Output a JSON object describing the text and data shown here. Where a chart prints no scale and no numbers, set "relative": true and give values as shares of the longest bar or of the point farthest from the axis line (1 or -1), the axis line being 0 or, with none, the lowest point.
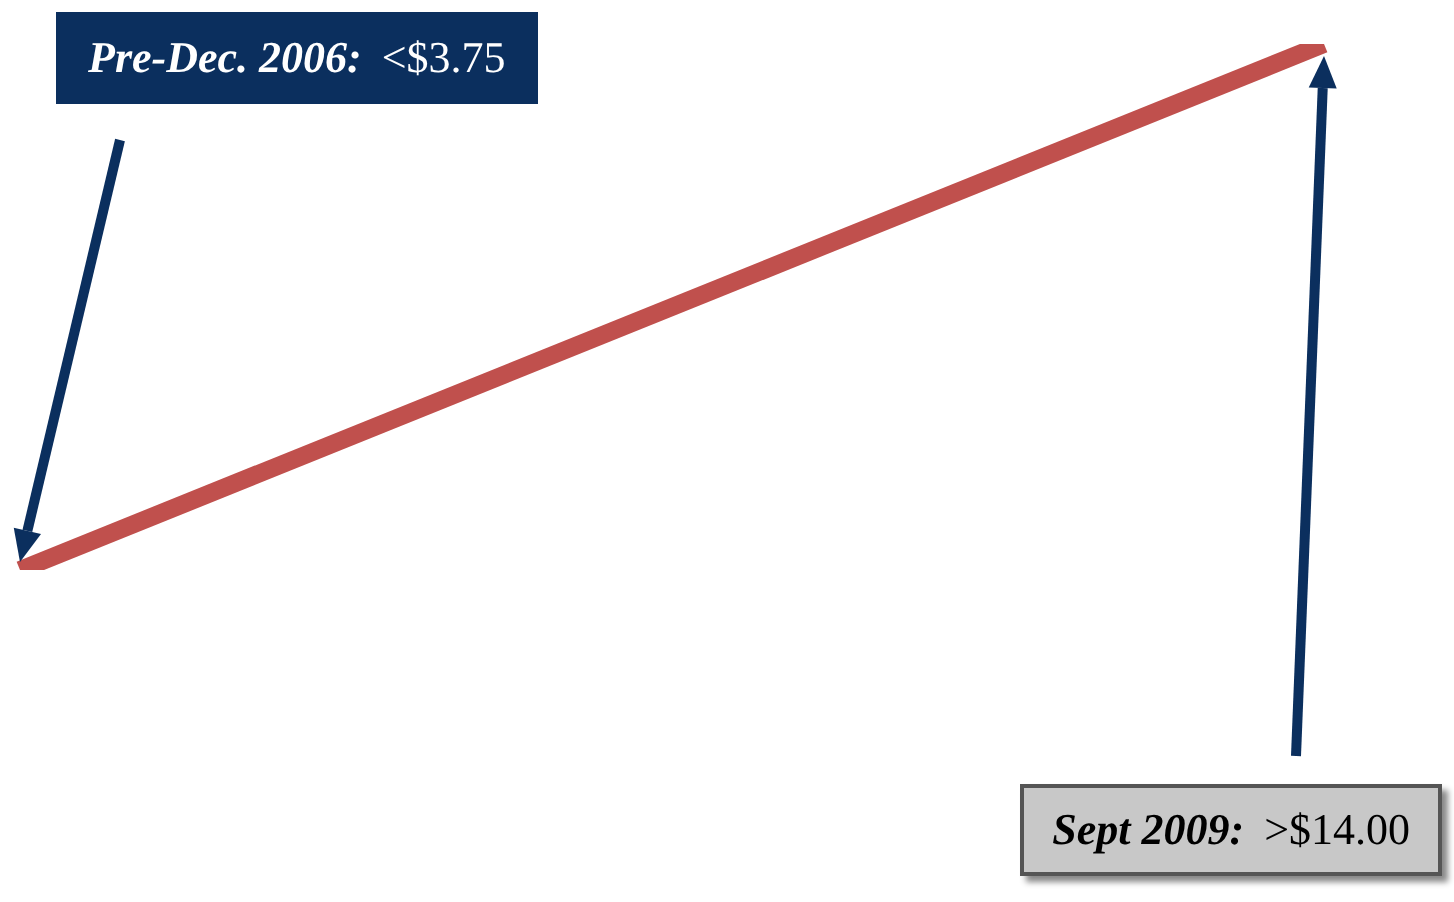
{
  "chart_data": {
    "type": "line",
    "categories": [
      null,
      null
    ],
    "relative": true,
    "series": [
      {
        "color": "#c0504d",
        "values": [
          0,
          1
        ]
      }
    ],
    "annotations": [
      "Pre-Dec. 2006: <$3.75",
      "Sept 2009: >$14.00"
    ],
    "legend": false,
    "marker": "none",
    "line_style": "solid",
    "tick_labels": false
  }
}
